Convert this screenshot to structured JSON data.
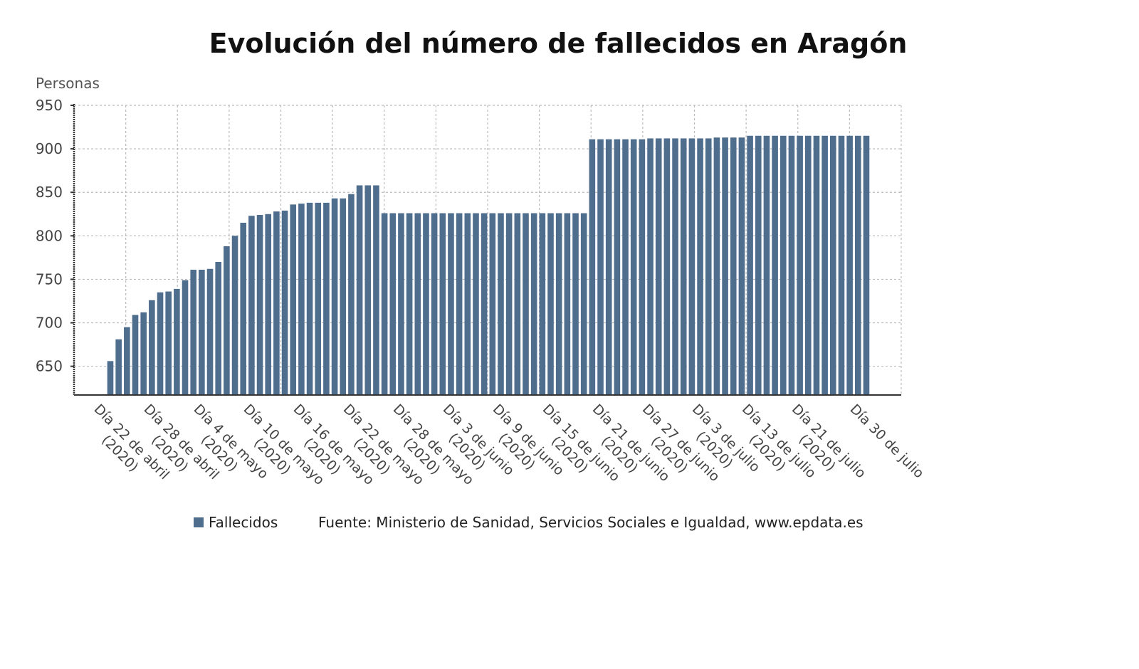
{
  "chart_data": {
    "type": "bar",
    "title": "Evolución del número de fallecidos en Aragón",
    "ylabel": "Personas",
    "xlabel": "",
    "ylim": [
      617,
      950
    ],
    "yticks": [
      650,
      700,
      750,
      800,
      850,
      900,
      950
    ],
    "grid": true,
    "legend_placement": "bottom",
    "colors": {
      "bar": "#4f6e8e",
      "axis": "#333333",
      "grid": "#bbbbbb"
    },
    "series": [
      {
        "name": "Fallecidos",
        "values": [
          656,
          681,
          695,
          709,
          712,
          726,
          735,
          736,
          739,
          749,
          761,
          761,
          762,
          770,
          788,
          800,
          815,
          823,
          824,
          825,
          828,
          829,
          836,
          837,
          838,
          838,
          838,
          843,
          843,
          848,
          858,
          858,
          858,
          826,
          826,
          826,
          826,
          826,
          826,
          826,
          826,
          826,
          826,
          826,
          826,
          826,
          826,
          826,
          826,
          826,
          826,
          826,
          826,
          826,
          826,
          826,
          826,
          826,
          911,
          911,
          911,
          911,
          911,
          911,
          911,
          912,
          912,
          912,
          912,
          912,
          912,
          912,
          912,
          913,
          913,
          913,
          913,
          915,
          915,
          915,
          915,
          915,
          915,
          915,
          915,
          915,
          915,
          915,
          915,
          915,
          915,
          915
        ]
      }
    ],
    "x_tick_labels": [
      {
        "bar": 0,
        "line1": "Día 22 de abril",
        "line2": "(2020)"
      },
      {
        "bar": 6,
        "line1": "Día 28 de abril",
        "line2": "(2020)"
      },
      {
        "bar": 12,
        "line1": "Día 4 de mayo",
        "line2": "(2020)"
      },
      {
        "bar": 18,
        "line1": "Día 10 de mayo",
        "line2": "(2020)"
      },
      {
        "bar": 24,
        "line1": "Día 16 de mayo",
        "line2": "(2020)"
      },
      {
        "bar": 30,
        "line1": "Día 22 de mayo",
        "line2": "(2020)"
      },
      {
        "bar": 36,
        "line1": "Día 28 de mayo",
        "line2": "(2020)"
      },
      {
        "bar": 42,
        "line1": "Día 3 de junio",
        "line2": "(2020)"
      },
      {
        "bar": 48,
        "line1": "Día 9 de junio",
        "line2": "(2020)"
      },
      {
        "bar": 54,
        "line1": "Día 15 de junio",
        "line2": "(2020)"
      },
      {
        "bar": 60,
        "line1": "Día 21 de junio",
        "line2": "(2020)"
      },
      {
        "bar": 66,
        "line1": "Día 27 de junio",
        "line2": "(2020)"
      },
      {
        "bar": 72,
        "line1": "Día 3 de julio",
        "line2": "(2020)"
      },
      {
        "bar": 78,
        "line1": "Día 13 de julio",
        "line2": "(2020)"
      },
      {
        "bar": 84,
        "line1": "Día 21 de julio",
        "line2": "(2020)"
      },
      {
        "bar": 91,
        "line1": "Día 30 de julio",
        "line2": ""
      }
    ],
    "source": "Fuente: Ministerio de Sanidad, Servicios Sociales e Igualdad, www.epdata.es"
  }
}
